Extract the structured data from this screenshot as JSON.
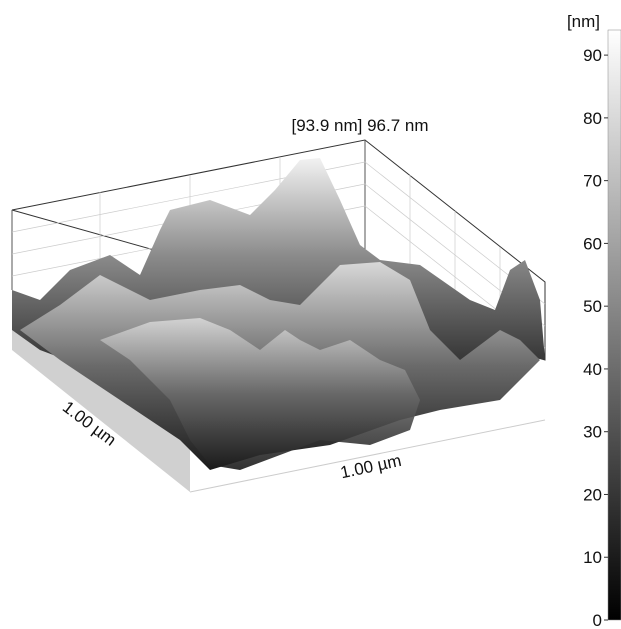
{
  "chart_data": {
    "type": "surface",
    "annotation": "[93.9 nm] 96.7 nm",
    "xlabel": "1.00 µm",
    "ylabel": "1.00 µm",
    "colorbar_label": "[nm]",
    "zlim": [
      0,
      94
    ],
    "zticks": [
      0,
      10,
      20,
      30,
      40,
      50,
      60,
      70,
      80,
      90
    ],
    "colormap": [
      "#000000",
      "#ffffff"
    ]
  }
}
